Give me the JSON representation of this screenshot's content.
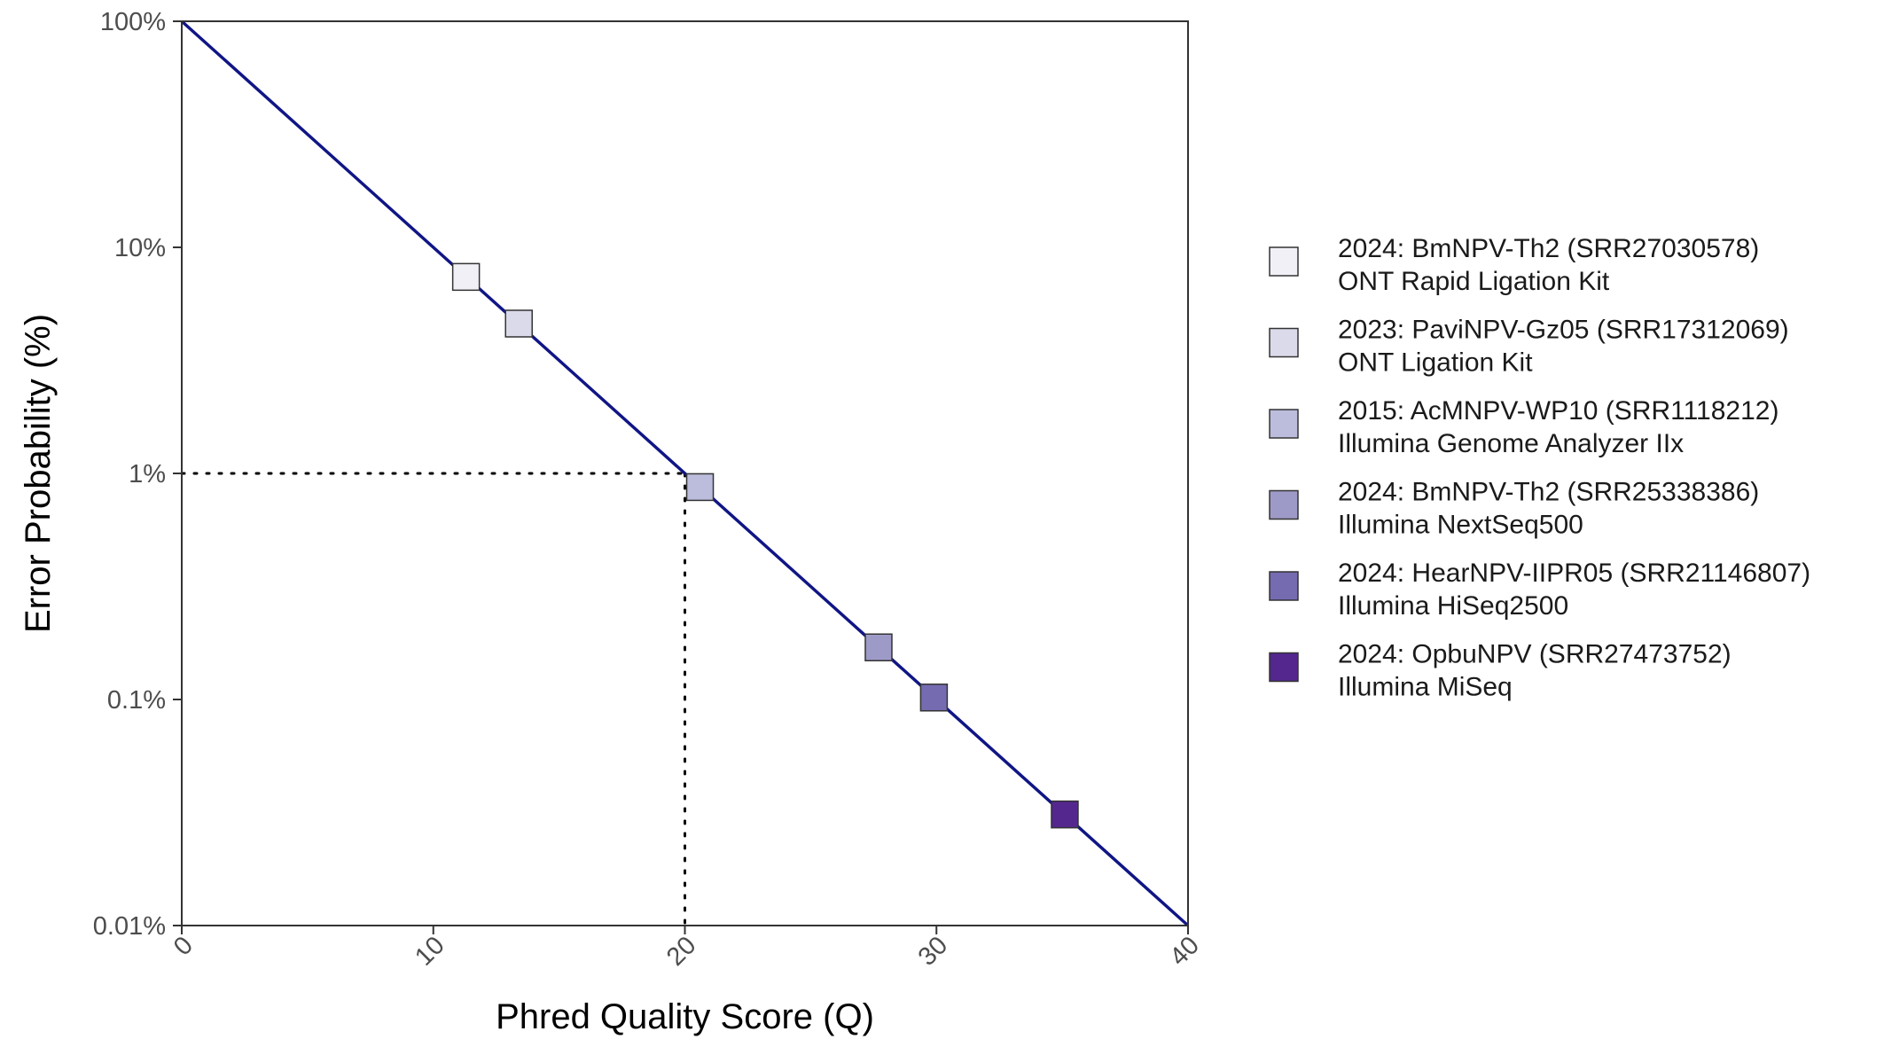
{
  "chart_data": {
    "type": "scatter",
    "xlabel": "Phred Quality Score (Q)",
    "ylabel": "Error Probability (%)",
    "xlim": [
      0,
      40
    ],
    "ylim": [
      0.01,
      100
    ],
    "y_scale": "log",
    "x_ticks": [
      0,
      10,
      20,
      30,
      40
    ],
    "x_tick_labels": [
      "0",
      "10",
      "20",
      "30",
      "40"
    ],
    "y_ticks": [
      100,
      10,
      1,
      0.1,
      0.01
    ],
    "y_tick_labels": [
      "100%",
      "10%",
      "1%",
      "0.1%",
      "0.01%"
    ],
    "grid": false,
    "legend_position": "right",
    "line": {
      "x": [
        0,
        40
      ],
      "y": [
        100,
        0.01
      ],
      "color": "#101585"
    },
    "reference": {
      "x": 20,
      "y": 1,
      "style": "dotted"
    },
    "series": [
      {
        "name": "2024: BmNPV-Th2 (SRR27030578)",
        "name_line2": "ONT Rapid Ligation Kit",
        "x": 11.3,
        "y": 7.4,
        "color": "#f2f0f7"
      },
      {
        "name": "2023: PaviNPV-Gz05 (SRR17312069)",
        "name_line2": "ONT Ligation Kit",
        "x": 13.4,
        "y": 4.6,
        "color": "#dadaeb"
      },
      {
        "name": "2015: AcMNPV-WP10 (SRR1118212)",
        "name_line2": "Illumina Genome Analyzer IIx",
        "x": 20.6,
        "y": 0.87,
        "color": "#bcbddc"
      },
      {
        "name": "2024: BmNPV-Th2 (SRR25338386)",
        "name_line2": "Illumina NextSeq500",
        "x": 27.7,
        "y": 0.17,
        "color": "#9e9ac8"
      },
      {
        "name": "2024: HearNPV-IIPR05 (SRR21146807)",
        "name_line2": "Illumina HiSeq2500",
        "x": 29.9,
        "y": 0.102,
        "color": "#756bb1"
      },
      {
        "name": "2024: OpbuNPV (SRR27473752)",
        "name_line2": "Illumina MiSeq",
        "x": 35.1,
        "y": 0.031,
        "color": "#54278f"
      }
    ]
  }
}
